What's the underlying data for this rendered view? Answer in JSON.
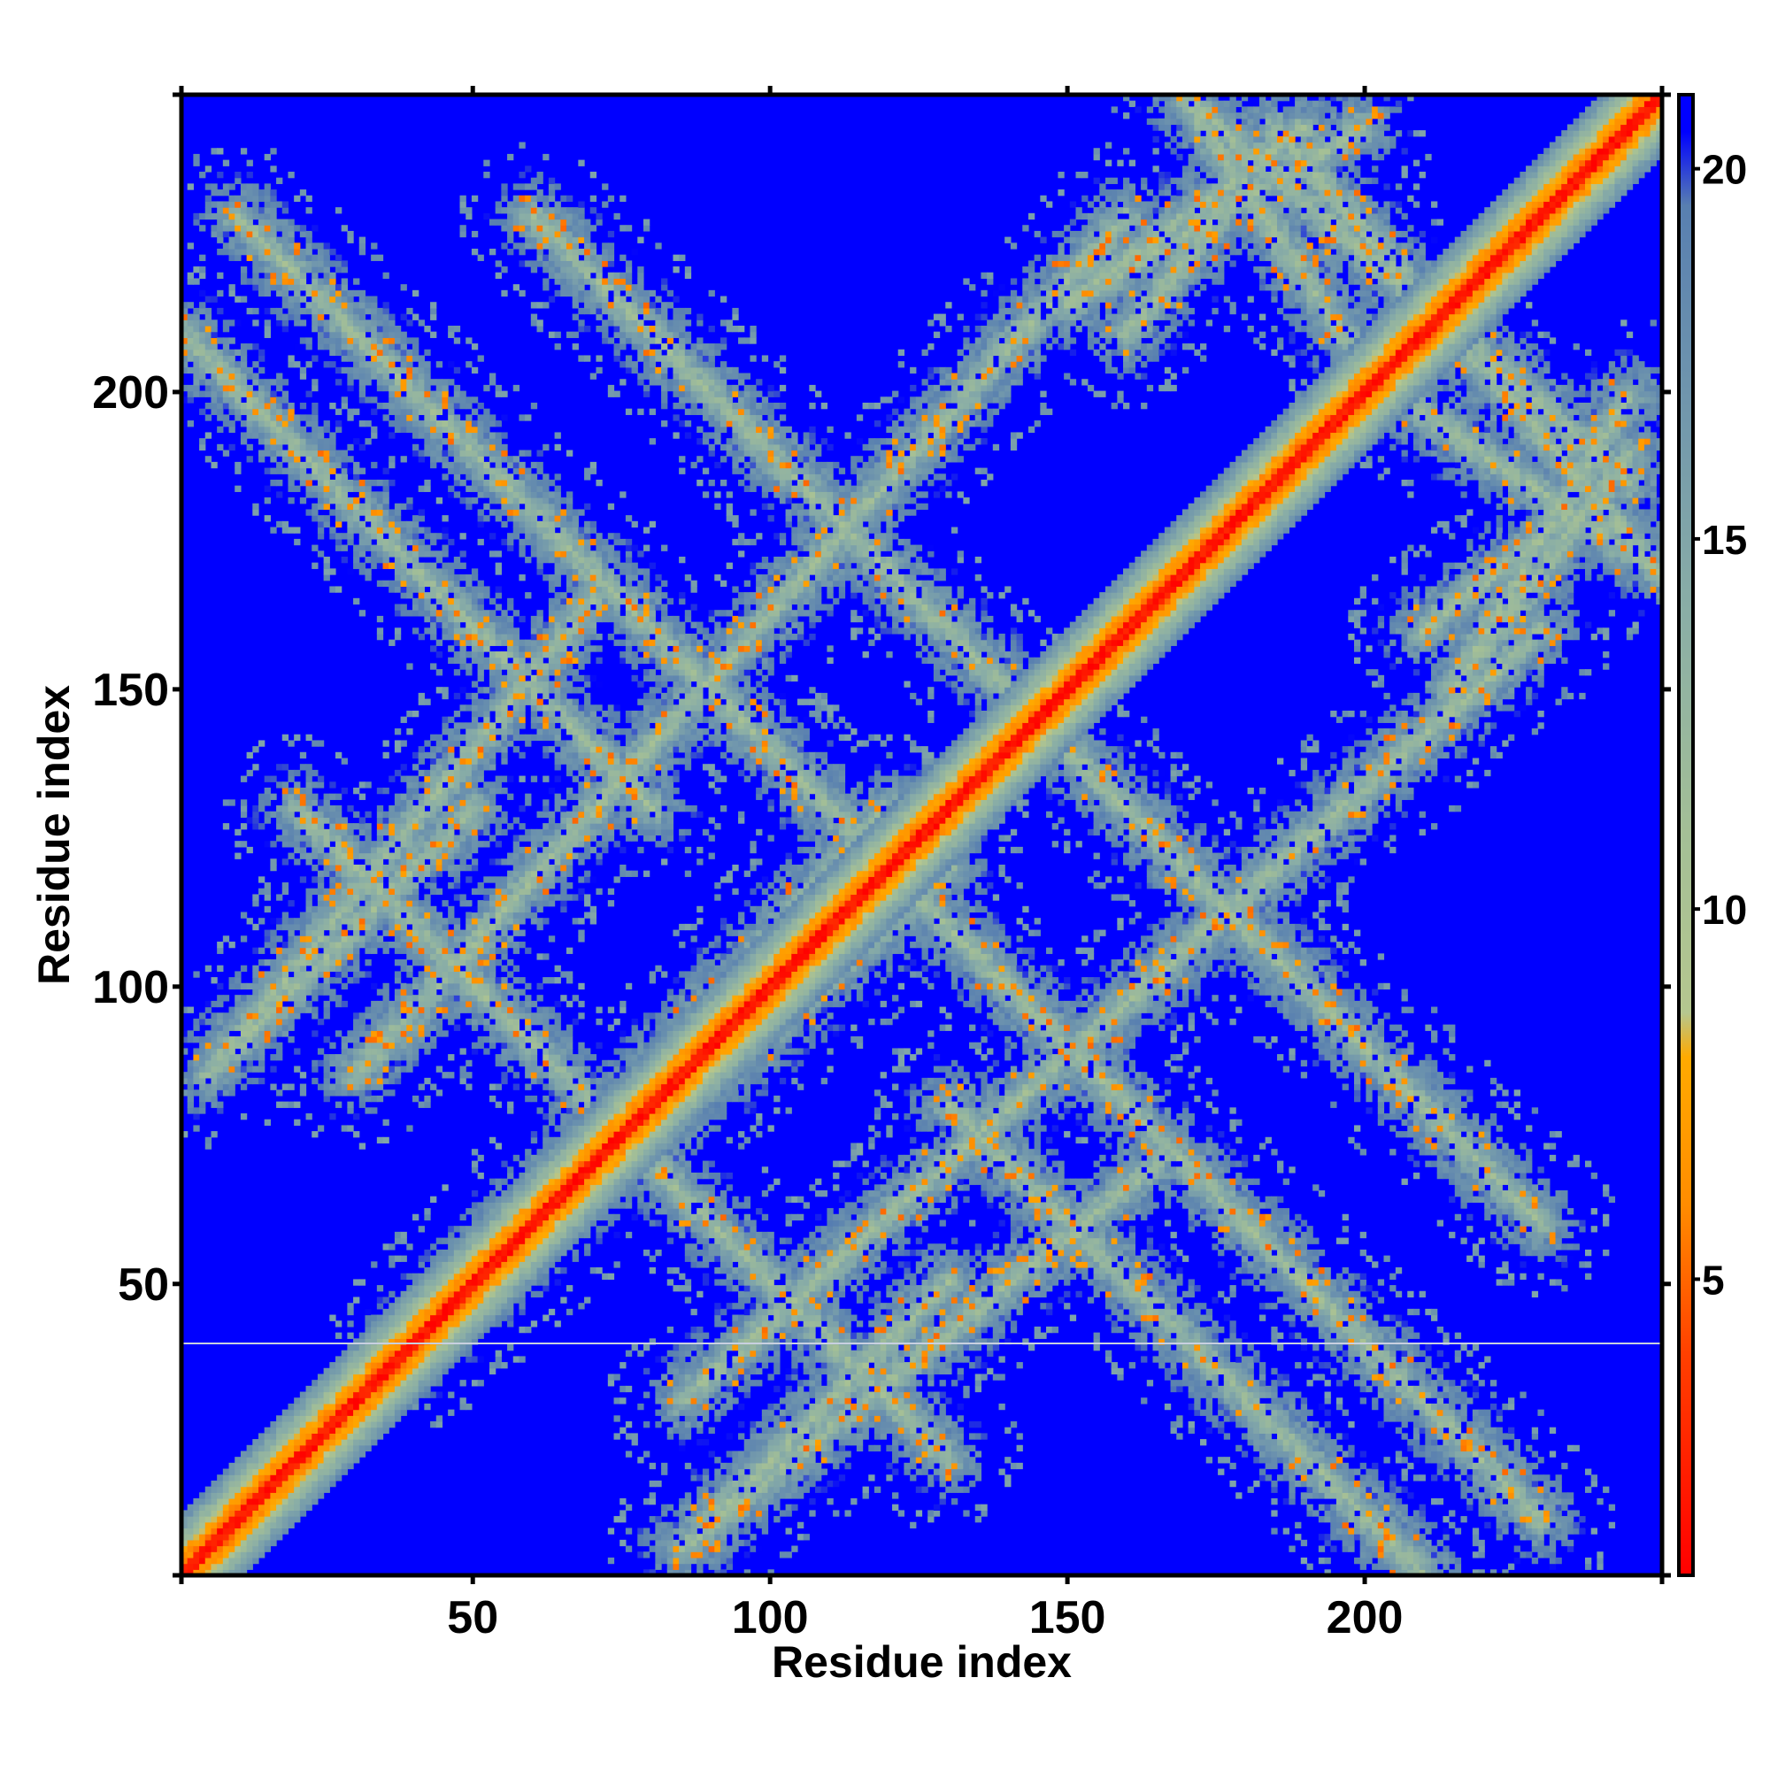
{
  "chart_data": {
    "type": "heatmap",
    "title": "",
    "xlabel": "Residue index",
    "ylabel": "Residue index",
    "n_residues": 250,
    "xlim": [
      1,
      250
    ],
    "ylim": [
      1,
      250
    ],
    "x_ticks": [
      50,
      100,
      150,
      200
    ],
    "y_ticks": [
      50,
      100,
      150,
      200
    ],
    "colorbar": {
      "range": [
        1,
        21
      ],
      "ticks": [
        5,
        10,
        15,
        20
      ],
      "stops": [
        {
          "value": 1,
          "color": "#ff0000"
        },
        {
          "value": 4,
          "color": "#ff4000"
        },
        {
          "value": 6,
          "color": "#ff8c00"
        },
        {
          "value": 8,
          "color": "#ffaa00"
        },
        {
          "value": 8.6,
          "color": "#b5c78f"
        },
        {
          "value": 11,
          "color": "#a4bf96"
        },
        {
          "value": 14,
          "color": "#8aaea6"
        },
        {
          "value": 17,
          "color": "#6f95ad"
        },
        {
          "value": 19.5,
          "color": "#587fb0"
        },
        {
          "value": 20.5,
          "color": "#0000ff"
        }
      ]
    },
    "background_value_color": "#0000ff",
    "contact_bands": [
      {
        "from": [
          1,
          210
        ],
        "to": [
          80,
          130
        ]
      },
      {
        "from": [
          5,
          85
        ],
        "to": [
          50,
          130
        ]
      },
      {
        "from": [
          20,
          130
        ],
        "to": [
          120,
          30
        ]
      },
      {
        "from": [
          38,
          40
        ],
        "to": [
          120,
          130
        ]
      },
      {
        "from": [
          60,
          230
        ],
        "to": [
          160,
          130
        ]
      },
      {
        "from": [
          85,
          5
        ],
        "to": [
          165,
          70
        ]
      },
      {
        "from": [
          85,
          30
        ],
        "to": [
          230,
          160
        ]
      },
      {
        "from": [
          115,
          125
        ],
        "to": [
          230,
          10
        ]
      },
      {
        "from": [
          150,
          215
        ],
        "to": [
          190,
          245
        ]
      },
      {
        "from": [
          150,
          215
        ],
        "to": [
          200,
          245
        ]
      },
      {
        "from": [
          185,
          245
        ],
        "to": [
          250,
          170
        ]
      },
      {
        "from": [
          205,
          200
        ],
        "to": [
          250,
          170
        ]
      },
      {
        "from": [
          210,
          160
        ],
        "to": [
          235,
          180
        ]
      }
    ]
  }
}
